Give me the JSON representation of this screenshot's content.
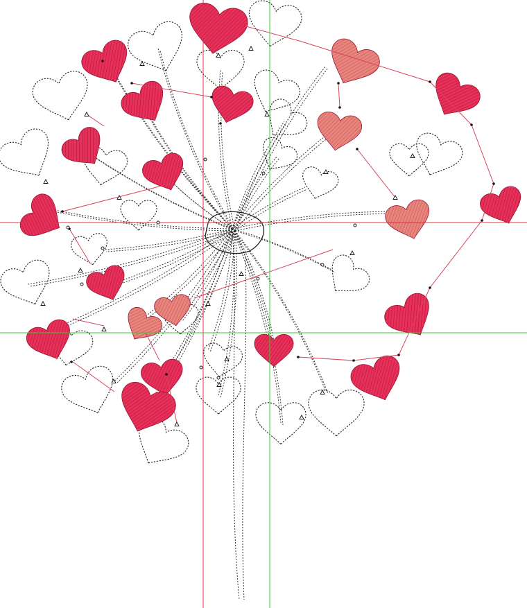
{
  "colors": {
    "background": "#ffffff",
    "heart_red": "#e8305a",
    "heart_red_hatch": "#b0183c",
    "heart_pink": "#e8857f",
    "heart_pink_hatch": "#c5564f",
    "outline": "#222222",
    "guide_red": "#e0304a",
    "guide_green": "#33cc33",
    "jump_stitch": "#d8455c"
  },
  "icons": {
    "start_marker": "triangle-marker-icon",
    "stitch_point": "dot-marker-icon",
    "end_marker": "circle-marker-icon"
  }
}
